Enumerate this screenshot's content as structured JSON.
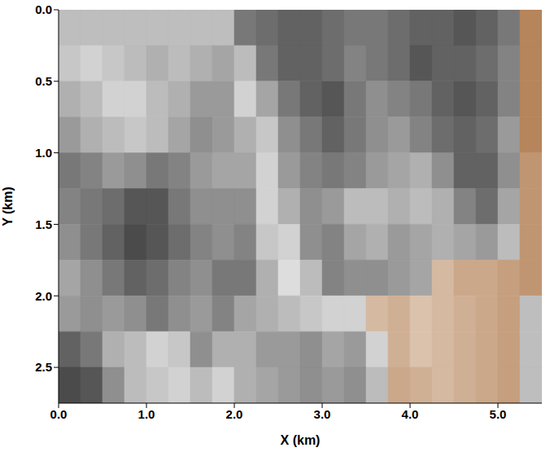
{
  "chart_data": {
    "type": "heatmap",
    "x_label": "X (km)",
    "y_label": "Y (km)",
    "xlim": [
      0,
      5.5
    ],
    "ylim": [
      0,
      2.75
    ],
    "xticks": [
      {
        "value": 0,
        "label": "0.0"
      },
      {
        "value": 1,
        "label": "1.0"
      },
      {
        "value": 2,
        "label": "2.0"
      },
      {
        "value": 3,
        "label": "3.0"
      },
      {
        "value": 4,
        "label": "4.0"
      },
      {
        "value": 5,
        "label": "5.0"
      }
    ],
    "yticks": [
      {
        "value": 0,
        "label": "0.0"
      },
      {
        "value": 0.5,
        "label": "0.5"
      },
      {
        "value": 1,
        "label": "1.0"
      },
      {
        "value": 1.5,
        "label": "1.5"
      },
      {
        "value": 2,
        "label": "2.0"
      },
      {
        "value": 2.5,
        "label": "2.5"
      }
    ],
    "x_edges": [
      0,
      0.25,
      0.5,
      0.75,
      1,
      1.25,
      1.5,
      1.75,
      2,
      2.25,
      2.5,
      2.75,
      3,
      3.25,
      3.5,
      3.75,
      4,
      4.25,
      4.5,
      4.75,
      5,
      5.25,
      5.5
    ],
    "y_edges": [
      0,
      0.25,
      0.5,
      0.75,
      1,
      1.25,
      1.5,
      1.75,
      2,
      2.25,
      2.5,
      2.75
    ],
    "value_range": [
      -1,
      1
    ],
    "cells": [
      [
        null,
        null,
        null,
        null,
        null,
        null,
        null,
        null,
        0.6,
        0.65,
        0.7,
        0.7,
        0.65,
        0.6,
        0.6,
        0.65,
        0.7,
        0.7,
        0.75,
        0.7,
        0.6,
        -0.7
      ],
      [
        0.25,
        0.2,
        0.25,
        0.3,
        0.35,
        0.3,
        0.35,
        0.4,
        0.3,
        0.6,
        0.7,
        0.7,
        0.65,
        0.55,
        0.6,
        0.65,
        0.75,
        0.7,
        0.7,
        0.65,
        0.55,
        -0.7
      ],
      [
        0.35,
        0.3,
        0.2,
        0.2,
        0.3,
        0.35,
        0.45,
        0.45,
        0.2,
        0.4,
        0.6,
        0.7,
        0.75,
        0.6,
        0.5,
        0.55,
        0.6,
        0.7,
        0.75,
        0.7,
        0.55,
        -0.7
      ],
      [
        0.45,
        0.35,
        0.3,
        0.25,
        0.3,
        0.4,
        0.5,
        0.45,
        0.35,
        0.25,
        0.5,
        0.6,
        0.7,
        0.6,
        0.5,
        0.45,
        0.55,
        0.65,
        0.7,
        0.65,
        0.45,
        -0.7
      ],
      [
        0.6,
        0.55,
        0.45,
        0.5,
        0.6,
        0.55,
        0.45,
        0.4,
        0.4,
        0.2,
        0.45,
        0.55,
        0.6,
        0.55,
        0.45,
        0.4,
        0.35,
        0.5,
        0.7,
        0.7,
        0.5,
        -0.6
      ],
      [
        0.55,
        0.6,
        0.65,
        0.75,
        0.75,
        0.6,
        0.5,
        0.5,
        0.5,
        0.2,
        0.35,
        0.5,
        0.45,
        0.3,
        0.3,
        0.35,
        0.3,
        0.35,
        0.55,
        0.65,
        0.4,
        -0.6
      ],
      [
        0.5,
        0.6,
        0.7,
        0.8,
        0.75,
        0.65,
        0.55,
        0.5,
        0.55,
        0.25,
        0.2,
        0.5,
        0.55,
        0.4,
        0.35,
        0.45,
        0.4,
        0.35,
        0.4,
        0.45,
        0.3,
        -0.6
      ],
      [
        0.4,
        0.5,
        0.6,
        0.7,
        0.65,
        0.55,
        0.5,
        0.6,
        0.6,
        0.35,
        0.15,
        0.3,
        0.55,
        0.5,
        0.5,
        0.45,
        0.4,
        -0.4,
        -0.5,
        -0.5,
        -0.55,
        -0.6
      ],
      [
        0.45,
        0.5,
        0.45,
        0.5,
        0.6,
        0.5,
        0.45,
        0.55,
        0.4,
        0.35,
        0.3,
        0.25,
        0.2,
        0.2,
        -0.4,
        -0.45,
        -0.35,
        -0.4,
        -0.45,
        -0.5,
        -0.55,
        null
      ],
      [
        0.7,
        0.6,
        0.35,
        0.3,
        0.2,
        0.25,
        0.5,
        0.35,
        0.35,
        0.45,
        0.45,
        0.5,
        0.4,
        0.45,
        0.2,
        -0.45,
        -0.35,
        -0.4,
        -0.45,
        -0.5,
        -0.55,
        null
      ],
      [
        0.8,
        0.75,
        0.5,
        0.3,
        0.25,
        0.2,
        0.3,
        0.2,
        0.35,
        0.4,
        0.45,
        0.5,
        0.45,
        0.5,
        0.3,
        -0.5,
        -0.45,
        -0.4,
        -0.45,
        -0.5,
        -0.55,
        null
      ]
    ]
  }
}
